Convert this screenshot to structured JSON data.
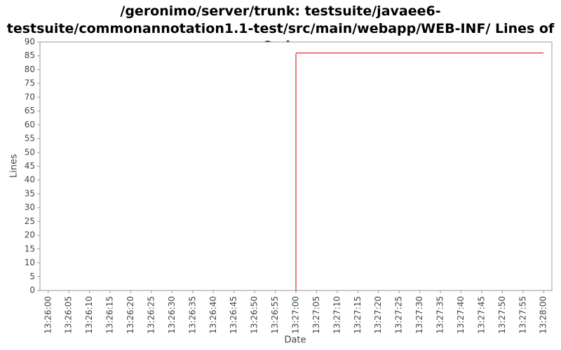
{
  "chart_data": {
    "type": "line",
    "title": "/geronimo/server/trunk: testsuite/javaee6-testsuite/commonannotation1.1-test/src/main/webapp/WEB-INF/ Lines of Code",
    "xlabel": "Date",
    "ylabel": "Lines",
    "x": [
      "13:27:00",
      "13:28:00"
    ],
    "series": [
      {
        "name": "Lines",
        "color": "#cc0000",
        "values": [
          86,
          86
        ]
      }
    ],
    "xlim": [
      "13:25:58",
      "13:28:02"
    ],
    "xticks": [
      "13:26:00",
      "13:26:05",
      "13:26:10",
      "13:26:15",
      "13:26:20",
      "13:26:25",
      "13:26:30",
      "13:26:35",
      "13:26:40",
      "13:26:45",
      "13:26:50",
      "13:26:55",
      "13:27:00",
      "13:27:05",
      "13:27:10",
      "13:27:15",
      "13:27:20",
      "13:27:25",
      "13:27:30",
      "13:27:35",
      "13:27:40",
      "13:27:45",
      "13:27:50",
      "13:27:55",
      "13:28:00"
    ],
    "ylim": [
      0,
      90
    ],
    "yticks": [
      0,
      5,
      10,
      15,
      20,
      25,
      30,
      35,
      40,
      45,
      50,
      55,
      60,
      65,
      70,
      75,
      80,
      85,
      90
    ]
  }
}
